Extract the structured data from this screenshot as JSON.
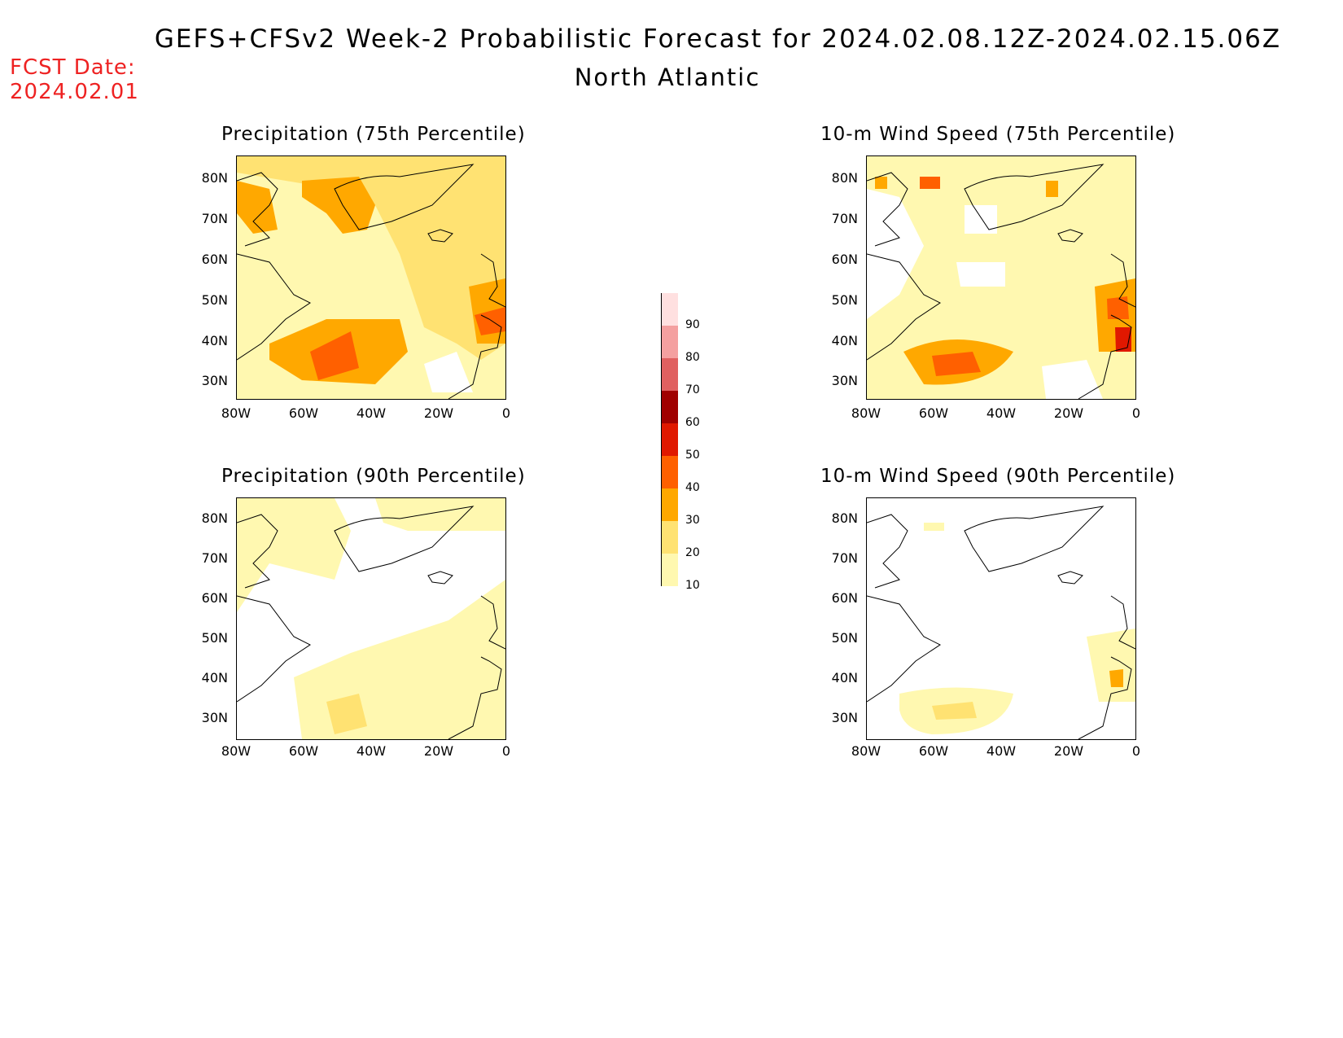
{
  "header": {
    "title": "GEFS+CFSv2 Week-2 Probabilistic Forecast for 2024.02.08.12Z-2024.02.15.06Z",
    "subtitle": "North Atlantic",
    "fcst_label": "FCST Date:",
    "fcst_date": "2024.02.01"
  },
  "panels": [
    {
      "id": "precip75",
      "title": "Precipitation (75th Percentile)"
    },
    {
      "id": "wind75",
      "title": "10-m Wind Speed (75th Percentile)"
    },
    {
      "id": "precip90",
      "title": "Precipitation (90th Percentile)"
    },
    {
      "id": "wind90",
      "title": "10-m Wind Speed (90th Percentile)"
    }
  ],
  "axes": {
    "lat_labels": [
      "80N",
      "70N",
      "60N",
      "50N",
      "40N",
      "30N"
    ],
    "lon_labels": [
      "80W",
      "60W",
      "40W",
      "20W",
      "0"
    ]
  },
  "colorbar": {
    "levels": [
      "10",
      "20",
      "30",
      "40",
      "50",
      "60",
      "70",
      "80",
      "90"
    ],
    "colors": [
      "#fff8b0",
      "#ffe272",
      "#ffa800",
      "#ff6000",
      "#e01800",
      "#a00000",
      "#e06060",
      "#f4a0a0",
      "#ffe0e0"
    ]
  }
}
